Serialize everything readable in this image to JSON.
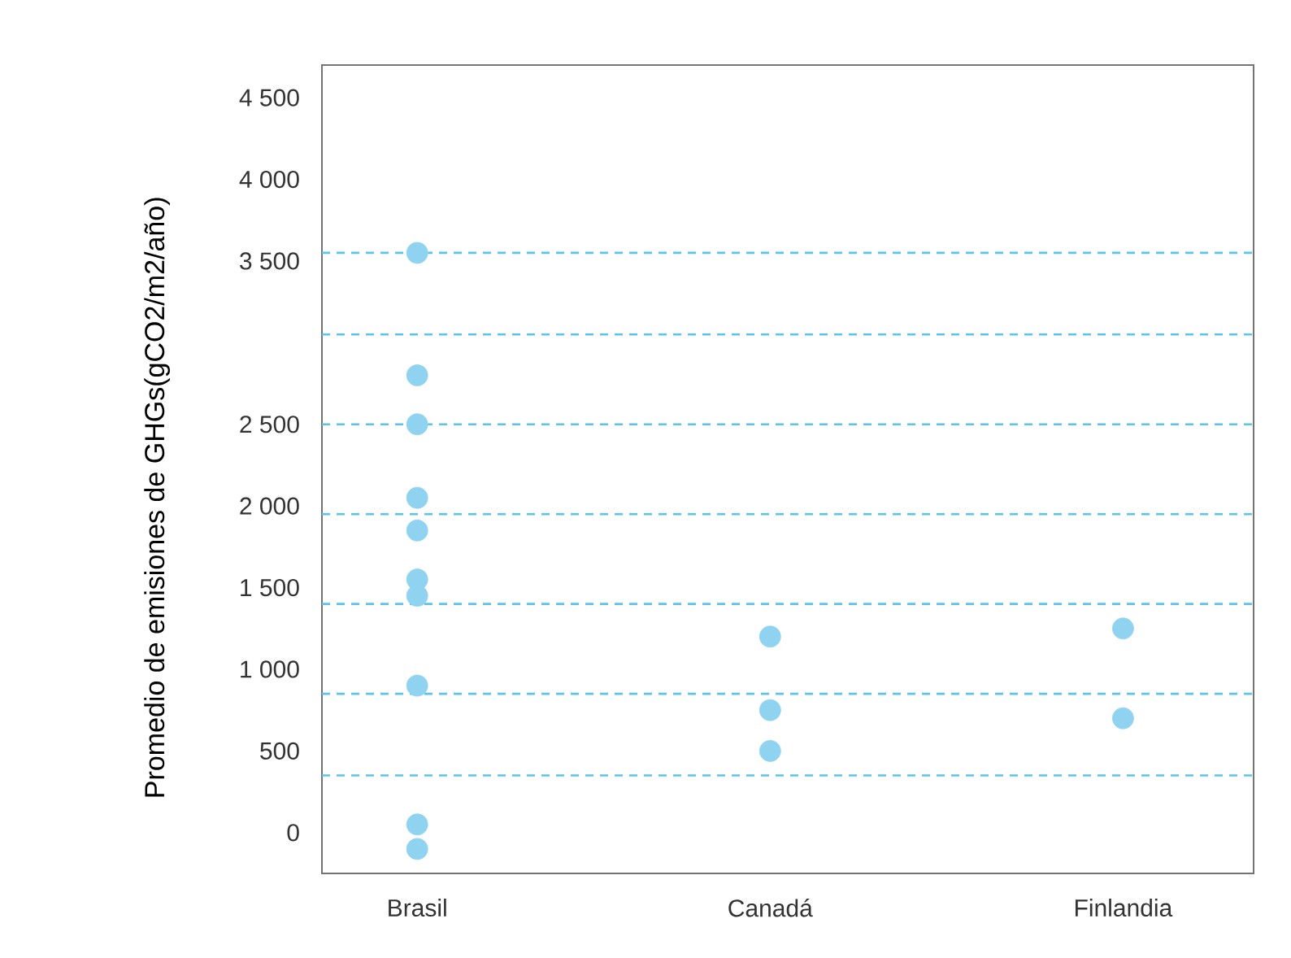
{
  "chart_data": {
    "type": "scatter",
    "ylabel": "Promedio de emisiones de GHGs(gCO2/m2/año)",
    "categories": [
      "Brasil",
      "Canadá",
      "Finlandia"
    ],
    "series": [
      {
        "color": "#8fd3f0",
        "x": [
          "Brasil",
          "Brasil",
          "Brasil",
          "Brasil",
          "Brasil",
          "Brasil",
          "Brasil",
          "Brasil",
          "Brasil",
          "Brasil",
          "Canadá",
          "Canadá",
          "Canadá",
          "Finlandia",
          "Finlandia"
        ],
        "values": [
          3550,
          2800,
          2500,
          2050,
          1850,
          1550,
          1450,
          900,
          50,
          -100,
          1200,
          750,
          500,
          1250,
          700
        ]
      }
    ],
    "ylim": [
      -250,
      4700
    ],
    "yticks": [
      0,
      500,
      {
        "value": 1000,
        "label": "1 000"
      },
      {
        "value": 1500,
        "label": "1 500"
      },
      {
        "value": 2000,
        "label": "2 000"
      },
      {
        "value": 2500,
        "label": "2 500"
      },
      {
        "value": 3500,
        "label": "3 500"
      },
      {
        "value": 4000,
        "label": "4 000"
      },
      {
        "value": 4500,
        "label": "4 500"
      }
    ],
    "ref_lines": [
      {
        "axis": "y",
        "value": 3550,
        "color": "#5cc4ec",
        "line_style": "dashed"
      },
      {
        "axis": "y",
        "value": 3050,
        "color": "#5cc4ec",
        "line_style": "dashed"
      },
      {
        "axis": "y",
        "value": 2500,
        "color": "#5cc4ec",
        "line_style": "dashed"
      },
      {
        "axis": "y",
        "value": 1950,
        "color": "#5cc4ec",
        "line_style": "dashed"
      },
      {
        "axis": "y",
        "value": 1400,
        "color": "#5cc4ec",
        "line_style": "dashed"
      },
      {
        "axis": "y",
        "value": 850,
        "color": "#5cc4ec",
        "line_style": "dashed"
      },
      {
        "axis": "y",
        "value": 350,
        "color": "#5cc4ec",
        "line_style": "dashed"
      }
    ],
    "marker": "circle",
    "grid": false
  }
}
